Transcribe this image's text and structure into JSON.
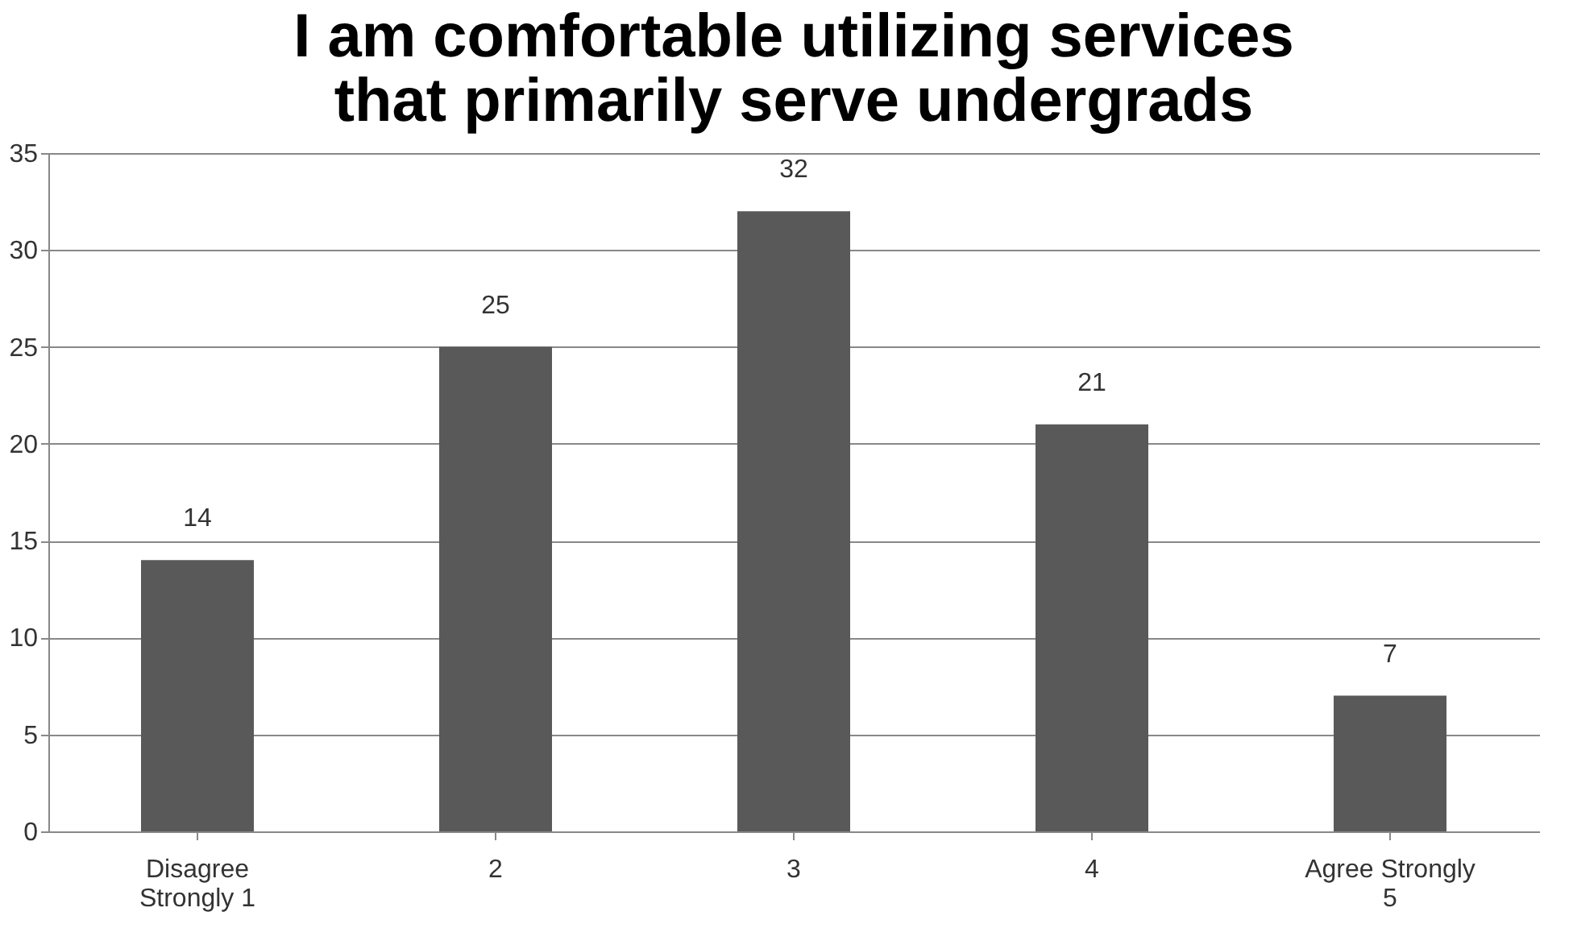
{
  "chart_data": {
    "type": "bar",
    "title": "I am comfortable utilizing services\nthat primarily serve undergrads",
    "categories": [
      "Disagree\nStrongly   1",
      "2",
      "3",
      "4",
      "Agree Strongly\n5"
    ],
    "values": [
      14,
      25,
      32,
      21,
      7
    ],
    "color": "#595959",
    "ylim": [
      0,
      35
    ],
    "yticks": [
      0,
      5,
      10,
      15,
      20,
      25,
      30,
      35
    ],
    "grid": "y",
    "data_labels": true
  }
}
